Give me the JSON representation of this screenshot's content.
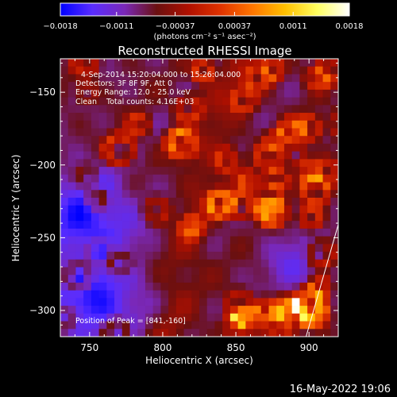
{
  "chart_data": {
    "type": "heatmap",
    "title": "Reconstructed RHESSI Image",
    "xlabel": "Heliocentric X (arcsec)",
    "ylabel": "Heliocentric Y (arcsec)",
    "xlim": [
      730,
      920
    ],
    "ylim": [
      -318,
      -127
    ],
    "x_ticks": [
      {
        "value": 750,
        "label": "750"
      },
      {
        "value": 800,
        "label": "800"
      },
      {
        "value": 850,
        "label": "850"
      },
      {
        "value": 900,
        "label": "900"
      }
    ],
    "y_ticks": [
      {
        "value": -150,
        "label": "−150"
      },
      {
        "value": -200,
        "label": "−200"
      },
      {
        "value": -250,
        "label": "−250"
      },
      {
        "value": -300,
        "label": "−300"
      }
    ],
    "colorbar": {
      "range": [
        -0.0018,
        0.0018
      ],
      "tick_values": [
        -0.0018,
        -0.0011,
        -0.00037,
        0.00037,
        0.0011,
        0.0018
      ],
      "tick_labels": [
        "−0.0018",
        "−0.0011",
        "−0.00037",
        "0.00037",
        "0.0011",
        "0.0018"
      ],
      "units_text": "(photons cm⁻² s⁻¹ asec⁻²)",
      "colors": [
        "#0000ff",
        "#5a2dff",
        "#7a28b8",
        "#6a1010",
        "#b01000",
        "#e03300",
        "#ff7700",
        "#ffc000",
        "#ffff60",
        "#ffffff"
      ]
    },
    "annotations": [
      "4-Sep-2014 15:20:04.000 to 15:26:04.000",
      "Detectors: 3F 8F 9F, Att 0",
      "Energy Range: 12.0 - 25.0 keV",
      "Clean    Total counts: 4.16E+03",
      "Position of Peak = [841,-160]"
    ],
    "peak": {
      "x": 841,
      "y": -160
    },
    "limb_line": {
      "x": [
        898,
        920
      ],
      "y": [
        -318,
        -241
      ]
    },
    "grid_size": [
      36,
      36
    ],
    "values": []
  },
  "footer": {
    "timestamp": "16-May-2022 19:06"
  }
}
